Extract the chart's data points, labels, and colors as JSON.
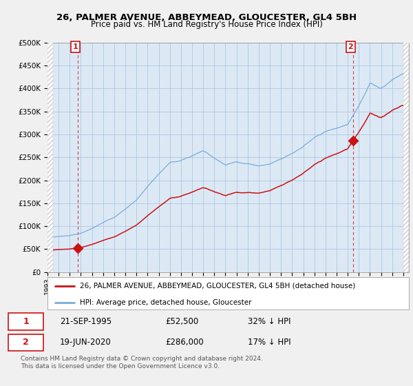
{
  "title": "26, PALMER AVENUE, ABBEYMEAD, GLOUCESTER, GL4 5BH",
  "subtitle": "Price paid vs. HM Land Registry's House Price Index (HPI)",
  "xlim_start": 1993.5,
  "xlim_end": 2025.5,
  "ylim": [
    0,
    500000
  ],
  "yticks": [
    0,
    50000,
    100000,
    150000,
    200000,
    250000,
    300000,
    350000,
    400000,
    450000,
    500000
  ],
  "xtick_years": [
    1993,
    1994,
    1995,
    1996,
    1997,
    1998,
    1999,
    2000,
    2001,
    2002,
    2003,
    2004,
    2005,
    2006,
    2007,
    2008,
    2009,
    2010,
    2011,
    2012,
    2013,
    2014,
    2015,
    2016,
    2017,
    2018,
    2019,
    2020,
    2021,
    2022,
    2023,
    2024,
    2025
  ],
  "background_color": "#f0f0f0",
  "plot_bg_color": "#dce9f5",
  "grid_color": "#aec6e0",
  "hpi_color": "#7aabdb",
  "price_color": "#cc1111",
  "marker_color": "#cc1111",
  "sale1_x": 1995.72,
  "sale1_y": 52500,
  "sale2_x": 2020.46,
  "sale2_y": 286000,
  "legend_label1": "26, PALMER AVENUE, ABBEYMEAD, GLOUCESTER, GL4 5BH (detached house)",
  "legend_label2": "HPI: Average price, detached house, Gloucester",
  "ann1_date": "21-SEP-1995",
  "ann1_price": "£52,500",
  "ann1_hpi": "32% ↓ HPI",
  "ann2_date": "19-JUN-2020",
  "ann2_price": "£286,000",
  "ann2_hpi": "17% ↓ HPI",
  "footnote": "Contains HM Land Registry data © Crown copyright and database right 2024.\nThis data is licensed under the Open Government Licence v3.0.",
  "hpi_years": [
    1993,
    1994,
    1995,
    1996,
    1997,
    1998,
    1999,
    2000,
    2001,
    2002,
    2003,
    2004,
    2005,
    2006,
    2007,
    2008,
    2009,
    2010,
    2011,
    2012,
    2013,
    2014,
    2015,
    2016,
    2017,
    2018,
    2019,
    2020,
    2021,
    2022,
    2023,
    2024,
    2025
  ],
  "hpi_vals": [
    75000,
    78000,
    80000,
    85000,
    95000,
    108000,
    120000,
    138000,
    158000,
    188000,
    215000,
    240000,
    245000,
    255000,
    268000,
    252000,
    238000,
    245000,
    242000,
    238000,
    242000,
    255000,
    268000,
    285000,
    302000,
    315000,
    322000,
    330000,
    375000,
    425000,
    415000,
    435000,
    450000
  ]
}
